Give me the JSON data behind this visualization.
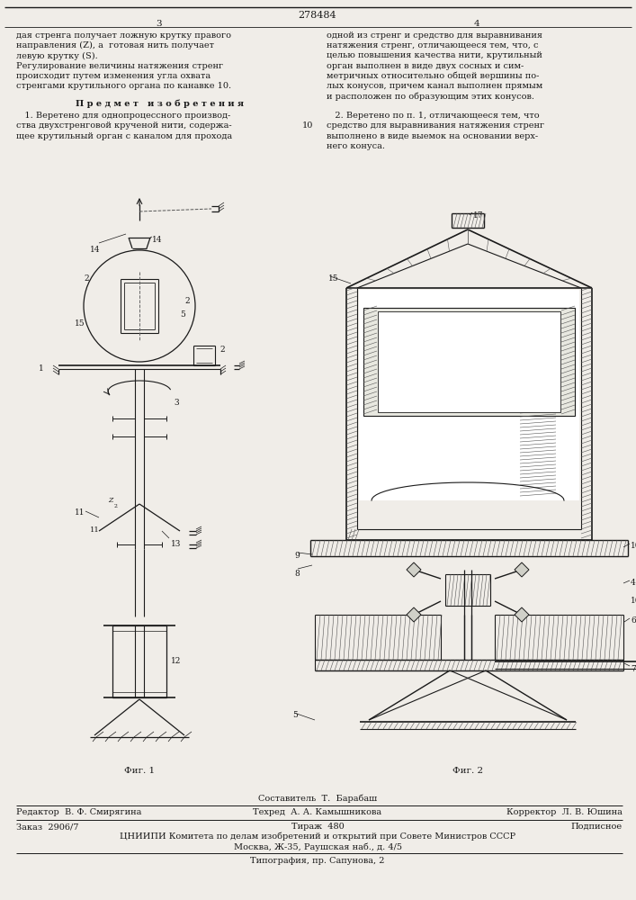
{
  "page_number_center": "278484",
  "page_left": "3",
  "page_right": "4",
  "text_left_col": [
    "дая стренга получает ложную крутку правого",
    "направления (Z), а  готовая нить получает",
    "левую крутку (S).",
    "Регулирование величины натяжения стренг",
    "происходит путем изменения угла охвата",
    "стренгами крутильного органа по канавке 10."
  ],
  "text_right_col": [
    "одной из стренг и средство для выравнивания",
    "натяжения стренг, отличающееся тем, что, с",
    "целью повышения качества нити, крутильный",
    "орган выполнен в виде двух сосных и сим-",
    "метричных относительно общей вершины по-",
    "лых конусов, причем канал выполнен прямым",
    "и расположен по образующим этих конусов."
  ],
  "predmet": "П р е д м е т   и з о б р е т е н и я",
  "claim1_text": [
    "   1. Веретено для однопроцессного производ-",
    "ства двухстренговой крученой нити, содержа-",
    "щее крутильный орган с каналом для прохода"
  ],
  "claim2_text": [
    "   2. Веретено по п. 1, отличающееся тем, что",
    "средство для выравнивания натяжения стренг",
    "выполнено в виде выемок на основании верх-",
    "него конуса."
  ],
  "line_num_right": "10",
  "fig1_label": "Фиг. 1",
  "fig2_label": "Фиг. 2",
  "footer_line1": "Составитель  Т.  Барабаш",
  "footer_line2_left": "Редактор  В. Ф. Смирягина",
  "footer_line2_mid": "Техред  А. А. Камышникова",
  "footer_line2_right": "Корректор  Л. В. Юшина",
  "footer_line3_left": "Заказ  2906/7",
  "footer_line3_mid": "Тираж  480",
  "footer_line3_right": "Подписное",
  "footer_line4": "ЦНИИПИ Комитета по делам изобретений и открытий при Совете Министров СССР",
  "footer_line5": "Москва, Ж-35, Раушская наб., д. 4/5",
  "footer_line6": "Типография, пр. Сапунова, 2",
  "bg_color": "#f0ede8",
  "text_color": "#1a1a1a",
  "line_color": "#1a1a1a"
}
